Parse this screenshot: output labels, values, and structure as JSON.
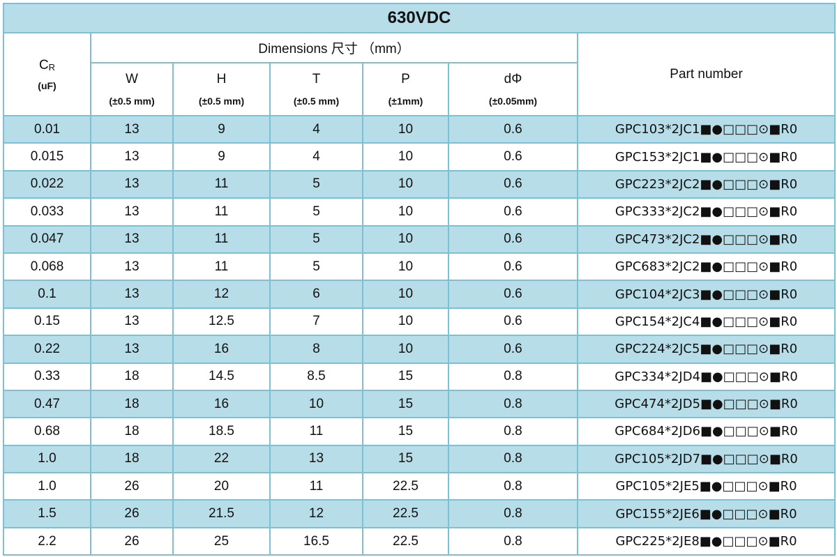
{
  "header": {
    "title": "630VDC",
    "cr": {
      "symbol": "C",
      "subscript": "R",
      "unit": "(uF)"
    },
    "dimensions": "Dimensions 尺寸 （mm）",
    "columns": [
      {
        "name": "W",
        "tolerance": "(±0.5 mm)"
      },
      {
        "name": "H",
        "tolerance": "(±0.5 mm)"
      },
      {
        "name": "T",
        "tolerance": "(±0.5 mm)"
      },
      {
        "name": "P",
        "tolerance": "(±1mm)"
      },
      {
        "name": "dΦ",
        "tolerance": "(±0.05mm)"
      }
    ],
    "part_number": "Part number"
  },
  "table": {
    "rows": [
      [
        "0.01",
        "13",
        "9",
        "4",
        "10",
        "0.6",
        "GPC103*2JC1■●□□□⊙■R0"
      ],
      [
        "0.015",
        "13",
        "9",
        "4",
        "10",
        "0.6",
        "GPC153*2JC1■●□□□⊙■R0"
      ],
      [
        "0.022",
        "13",
        "11",
        "5",
        "10",
        "0.6",
        "GPC223*2JC2■●□□□⊙■R0"
      ],
      [
        "0.033",
        "13",
        "11",
        "5",
        "10",
        "0.6",
        "GPC333*2JC2■●□□□⊙■R0"
      ],
      [
        "0.047",
        "13",
        "11",
        "5",
        "10",
        "0.6",
        "GPC473*2JC2■●□□□⊙■R0"
      ],
      [
        "0.068",
        "13",
        "11",
        "5",
        "10",
        "0.6",
        "GPC683*2JC2■●□□□⊙■R0"
      ],
      [
        "0.1",
        "13",
        "12",
        "6",
        "10",
        "0.6",
        "GPC104*2JC3■●□□□⊙■R0"
      ],
      [
        "0.15",
        "13",
        "12.5",
        "7",
        "10",
        "0.6",
        "GPC154*2JC4■●□□□⊙■R0"
      ],
      [
        "0.22",
        "13",
        "16",
        "8",
        "10",
        "0.6",
        "GPC224*2JC5■●□□□⊙■R0"
      ],
      [
        "0.33",
        "18",
        "14.5",
        "8.5",
        "15",
        "0.8",
        "GPC334*2JD4■●□□□⊙■R0"
      ],
      [
        "0.47",
        "18",
        "16",
        "10",
        "15",
        "0.8",
        "GPC474*2JD5■●□□□⊙■R0"
      ],
      [
        "0.68",
        "18",
        "18.5",
        "11",
        "15",
        "0.8",
        "GPC684*2JD6■●□□□⊙■R0"
      ],
      [
        "1.0",
        "18",
        "22",
        "13",
        "15",
        "0.8",
        "GPC105*2JD7■●□□□⊙■R0"
      ],
      [
        "1.0",
        "26",
        "20",
        "11",
        "22.5",
        "0.8",
        "GPC105*2JE5■●□□□⊙■R0"
      ],
      [
        "1.5",
        "26",
        "21.5",
        "12",
        "22.5",
        "0.8",
        "GPC155*2JE6■●□□□⊙■R0"
      ],
      [
        "2.2",
        "26",
        "25",
        "16.5",
        "22.5",
        "0.8",
        "GPC225*2JE8■●□□□⊙■R0"
      ]
    ]
  }
}
